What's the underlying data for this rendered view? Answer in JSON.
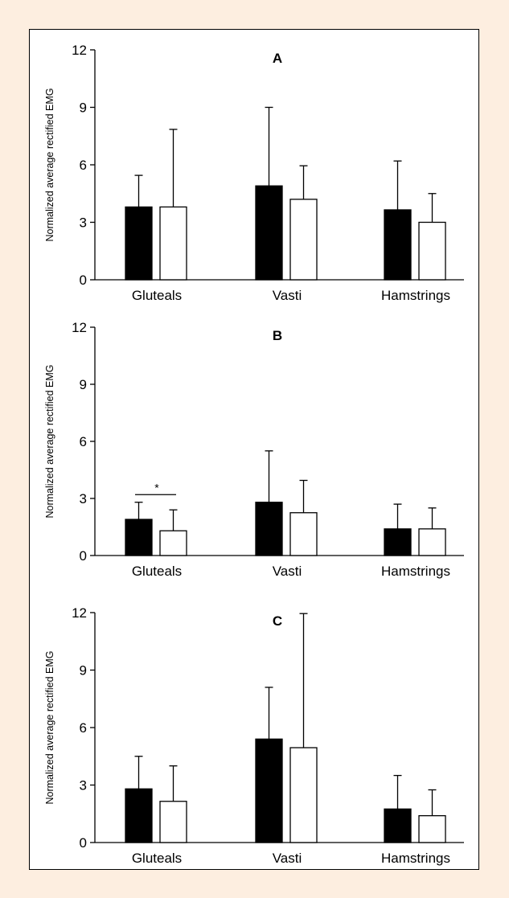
{
  "colors": {
    "page_background": "#fdeee0",
    "figure_background": "#ffffff",
    "series_1_fill": "#000000",
    "series_2_fill": "#ffffff",
    "stroke": "#000000"
  },
  "chart_data": [
    {
      "type": "bar",
      "title": "A",
      "ylabel": "Normalized average rectified EMG",
      "xlabel": "",
      "ylim": [
        0,
        12
      ],
      "yticks": [
        0,
        3,
        6,
        9,
        12
      ],
      "categories": [
        "Gluteals",
        "Vasti",
        "Hamstrings"
      ],
      "series": [
        {
          "values": [
            3.8,
            4.9,
            3.65
          ],
          "error": [
            1.65,
            4.1,
            2.55
          ]
        },
        {
          "values": [
            3.8,
            4.2,
            3.0
          ],
          "error": [
            4.05,
            1.75,
            1.5
          ]
        }
      ],
      "annotations": []
    },
    {
      "type": "bar",
      "title": "B",
      "ylabel": "Normalized average rectified EMG",
      "xlabel": "",
      "ylim": [
        0,
        12
      ],
      "yticks": [
        0,
        3,
        6,
        9,
        12
      ],
      "categories": [
        "Gluteals",
        "Vasti",
        "Hamstrings"
      ],
      "series": [
        {
          "values": [
            1.9,
            2.8,
            1.4
          ],
          "error": [
            0.9,
            2.7,
            1.3
          ]
        },
        {
          "values": [
            1.3,
            2.25,
            1.4
          ],
          "error": [
            1.1,
            1.7,
            1.1
          ]
        }
      ],
      "annotations": [
        {
          "text": "*",
          "category": "Gluteals",
          "y": 3.2
        }
      ]
    },
    {
      "type": "bar",
      "title": "C",
      "ylabel": "Normalized average rectified EMG",
      "xlabel": "",
      "ylim": [
        0,
        12
      ],
      "yticks": [
        0,
        3,
        6,
        9,
        12
      ],
      "categories": [
        "Gluteals",
        "Vasti",
        "Hamstrings"
      ],
      "series": [
        {
          "values": [
            2.8,
            5.4,
            1.75
          ],
          "error": [
            1.7,
            2.7,
            1.75
          ]
        },
        {
          "values": [
            2.15,
            4.95,
            1.4
          ],
          "error": [
            1.85,
            7.0,
            1.35
          ]
        }
      ],
      "annotations": []
    }
  ]
}
